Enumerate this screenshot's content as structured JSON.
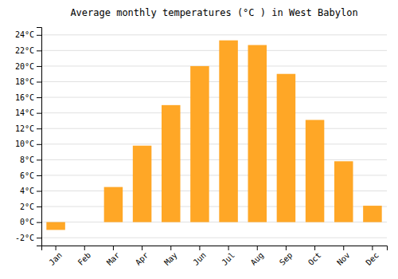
{
  "chart_data": {
    "type": "bar",
    "title": "Average monthly temperatures (°C ) in West Babylon",
    "categories": [
      "Jan",
      "Feb",
      "Mar",
      "Apr",
      "May",
      "Jun",
      "Jul",
      "Aug",
      "Sep",
      "Oct",
      "Nov",
      "Dec"
    ],
    "values": [
      -1.0,
      0.0,
      4.5,
      9.8,
      15.0,
      20.0,
      23.3,
      22.7,
      19.0,
      13.1,
      7.8,
      2.1
    ],
    "color": "#FFA726",
    "ylim": [
      -3,
      25
    ],
    "yticks": [
      {
        "value": -2,
        "label": "-2°C"
      },
      {
        "value": 0,
        "label": "0°C"
      },
      {
        "value": 2,
        "label": "2°C"
      },
      {
        "value": 4,
        "label": "4°C"
      },
      {
        "value": 6,
        "label": "6°C"
      },
      {
        "value": 8,
        "label": "8°C"
      },
      {
        "value": 10,
        "label": "10°C"
      },
      {
        "value": 12,
        "label": "12°C"
      },
      {
        "value": 14,
        "label": "14°C"
      },
      {
        "value": 16,
        "label": "16°C"
      },
      {
        "value": 18,
        "label": "18°C"
      },
      {
        "value": 20,
        "label": "20°C"
      },
      {
        "value": 22,
        "label": "22°C"
      },
      {
        "value": 24,
        "label": "24°C"
      }
    ],
    "grid": true
  }
}
